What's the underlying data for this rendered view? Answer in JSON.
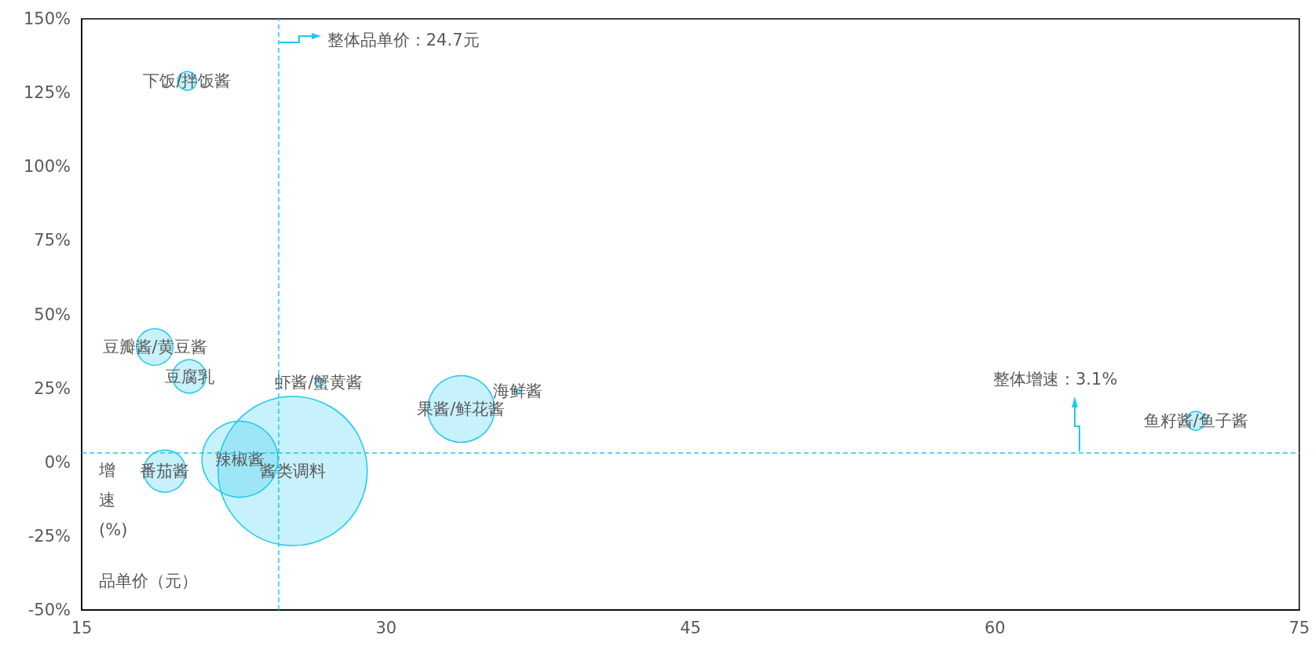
{
  "chart_data": {
    "type": "bubble",
    "xlabel": "品单价（元）",
    "ylabel": "增速(%)",
    "series": [
      {
        "name": "下饭/拌饭酱",
        "x": [
          20.2
        ],
        "values": [
          129
        ],
        "sizes": [
          0.016
        ],
        "color": "#1ec8f0"
      },
      {
        "name": "豆瓣酱/黄豆酱",
        "x": [
          18.6
        ],
        "values": [
          39
        ],
        "sizes": [
          0.06
        ],
        "color": "#1ec8f0"
      },
      {
        "name": "豆腐乳",
        "x": [
          20.3
        ],
        "values": [
          29
        ],
        "sizes": [
          0.05
        ],
        "color": "#1ec8f0"
      },
      {
        "name": "番茄酱",
        "x": [
          19.1
        ],
        "values": [
          -3
        ],
        "sizes": [
          0.08
        ],
        "color": "#1ec8f0"
      },
      {
        "name": "辣椒酱",
        "x": [
          22.8
        ],
        "values": [
          1
        ],
        "sizes": [
          0.26
        ],
        "color": "#1ec8f0"
      },
      {
        "name": "酱类调料",
        "x": [
          25.4
        ],
        "values": [
          -3
        ],
        "sizes": [
          1
        ],
        "color": "#1ec8f0"
      },
      {
        "name": "虾酱/蟹黄酱",
        "x": [
          26.7
        ],
        "values": [
          27
        ],
        "sizes": [
          0.003
        ],
        "color": "#1ec8f0"
      },
      {
        "name": "果酱/鲜花酱",
        "x": [
          33.7
        ],
        "values": [
          18
        ],
        "sizes": [
          0.2
        ],
        "color": "#1ec8f0"
      },
      {
        "name": "海鲜酱",
        "x": [
          36.5
        ],
        "values": [
          24
        ],
        "sizes": [
          0.001
        ],
        "color": "#1ec8f0"
      },
      {
        "name": "鱼籽酱/鱼子酱",
        "x": [
          69.9
        ],
        "values": [
          14
        ],
        "sizes": [
          0.016
        ],
        "color": "#1ec8f0"
      }
    ],
    "xlim": [
      15,
      75
    ],
    "xticks": [
      15,
      30,
      45,
      60,
      75
    ],
    "ylim": [
      -50,
      150
    ],
    "yticks": [
      {
        "value": -50,
        "label": "-50%"
      },
      {
        "value": -25,
        "label": "-25%"
      },
      {
        "value": 0,
        "label": "0%"
      },
      {
        "value": 25,
        "label": "25%"
      },
      {
        "value": 50,
        "label": "50%"
      },
      {
        "value": 75,
        "label": "75%"
      },
      {
        "value": 100,
        "label": "100%"
      },
      {
        "value": 125,
        "label": "125%"
      },
      {
        "value": 150,
        "label": "150%"
      }
    ],
    "ref_lines": [
      {
        "axis": "x",
        "value": 24.7,
        "label": "整体品单价：24.7元",
        "line_style": "dashed",
        "color": "#1ec8f0"
      },
      {
        "axis": "y",
        "value": 3.1,
        "label": "整体增速：3.1%",
        "line_style": "dashed",
        "color": "#1ec8f0"
      }
    ],
    "grid": false
  }
}
